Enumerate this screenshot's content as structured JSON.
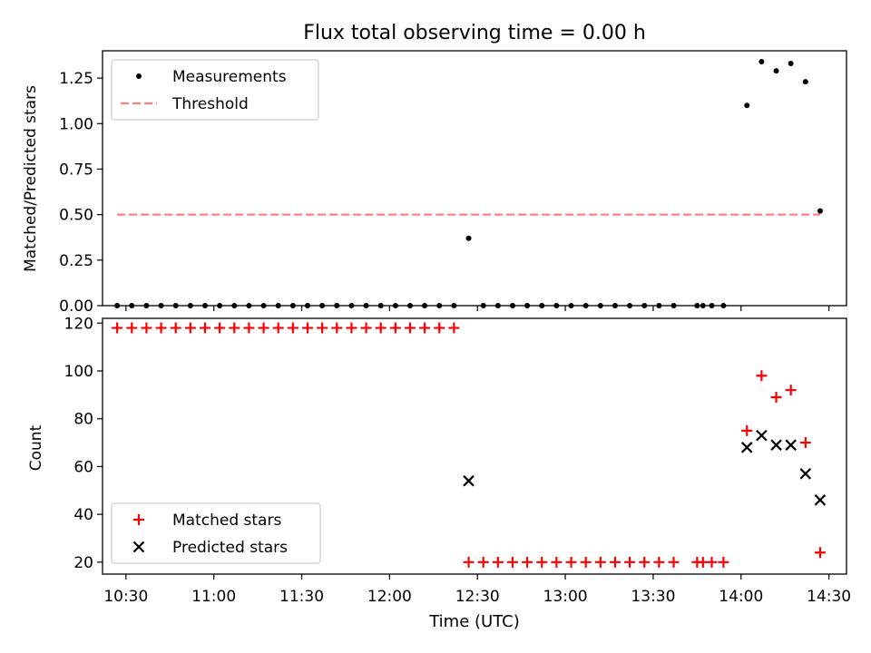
{
  "chart_data": {
    "type": "scatter",
    "title": "Flux total observing time = 0.00 h",
    "xlabel": "Time (UTC)",
    "xticks": [
      "10:30",
      "11:00",
      "11:30",
      "12:00",
      "12:30",
      "13:00",
      "13:30",
      "14:00",
      "14:30"
    ],
    "xlim": [
      "10:22",
      "14:36"
    ],
    "panels": [
      {
        "id": "top",
        "ylabel": "Matched/Predicted stars",
        "ylim": [
          0,
          1.4
        ],
        "yticks": [
          "0.00",
          "0.25",
          "0.50",
          "0.75",
          "1.00",
          "1.25"
        ],
        "legend_position": "upper-left",
        "series": [
          {
            "name": "Measurements",
            "marker": "dot",
            "color": "#000000",
            "points": [
              [
                "10:27",
                0
              ],
              [
                "10:32",
                0
              ],
              [
                "10:37",
                0
              ],
              [
                "10:42",
                0
              ],
              [
                "10:47",
                0
              ],
              [
                "10:52",
                0
              ],
              [
                "10:57",
                0
              ],
              [
                "11:02",
                0
              ],
              [
                "11:07",
                0
              ],
              [
                "11:12",
                0
              ],
              [
                "11:17",
                0
              ],
              [
                "11:22",
                0
              ],
              [
                "11:27",
                0
              ],
              [
                "11:32",
                0
              ],
              [
                "11:37",
                0
              ],
              [
                "11:42",
                0
              ],
              [
                "11:47",
                0
              ],
              [
                "11:52",
                0
              ],
              [
                "11:57",
                0
              ],
              [
                "12:02",
                0
              ],
              [
                "12:07",
                0
              ],
              [
                "12:12",
                0
              ],
              [
                "12:17",
                0
              ],
              [
                "12:22",
                0
              ],
              [
                "12:27",
                0.37
              ],
              [
                "12:32",
                0
              ],
              [
                "12:37",
                0
              ],
              [
                "12:42",
                0
              ],
              [
                "12:47",
                0
              ],
              [
                "12:52",
                0
              ],
              [
                "12:57",
                0
              ],
              [
                "13:02",
                0
              ],
              [
                "13:07",
                0
              ],
              [
                "13:12",
                0
              ],
              [
                "13:17",
                0
              ],
              [
                "13:22",
                0
              ],
              [
                "13:27",
                0
              ],
              [
                "13:32",
                0
              ],
              [
                "13:37",
                0
              ],
              [
                "13:45",
                0
              ],
              [
                "13:47",
                0
              ],
              [
                "13:50",
                0
              ],
              [
                "13:54",
                0
              ],
              [
                "14:02",
                1.1
              ],
              [
                "14:07",
                1.34
              ],
              [
                "14:12",
                1.29
              ],
              [
                "14:17",
                1.33
              ],
              [
                "14:22",
                1.23
              ],
              [
                "14:27",
                0.52
              ]
            ]
          },
          {
            "name": "Threshold",
            "marker": "dashed-line",
            "color": "#ff7f7f",
            "points": [
              [
                "10:27",
                0.5
              ],
              [
                "14:27",
                0.5
              ]
            ]
          }
        ]
      },
      {
        "id": "bottom",
        "ylabel": "Count",
        "ylim": [
          15,
          122
        ],
        "yticks": [
          "20",
          "40",
          "60",
          "80",
          "100",
          "120"
        ],
        "legend_position": "lower-left",
        "series": [
          {
            "name": "Matched stars",
            "marker": "plus",
            "color": "#ff0000",
            "points": [
              [
                "10:27",
                118
              ],
              [
                "10:32",
                118
              ],
              [
                "10:37",
                118
              ],
              [
                "10:42",
                118
              ],
              [
                "10:47",
                118
              ],
              [
                "10:52",
                118
              ],
              [
                "10:57",
                118
              ],
              [
                "11:02",
                118
              ],
              [
                "11:07",
                118
              ],
              [
                "11:12",
                118
              ],
              [
                "11:17",
                118
              ],
              [
                "11:22",
                118
              ],
              [
                "11:27",
                118
              ],
              [
                "11:32",
                118
              ],
              [
                "11:37",
                118
              ],
              [
                "11:42",
                118
              ],
              [
                "11:47",
                118
              ],
              [
                "11:52",
                118
              ],
              [
                "11:57",
                118
              ],
              [
                "12:02",
                118
              ],
              [
                "12:07",
                118
              ],
              [
                "12:12",
                118
              ],
              [
                "12:17",
                118
              ],
              [
                "12:22",
                118
              ],
              [
                "12:27",
                20
              ],
              [
                "12:32",
                20
              ],
              [
                "12:37",
                20
              ],
              [
                "12:42",
                20
              ],
              [
                "12:47",
                20
              ],
              [
                "12:52",
                20
              ],
              [
                "12:57",
                20
              ],
              [
                "13:02",
                20
              ],
              [
                "13:07",
                20
              ],
              [
                "13:12",
                20
              ],
              [
                "13:17",
                20
              ],
              [
                "13:22",
                20
              ],
              [
                "13:27",
                20
              ],
              [
                "13:32",
                20
              ],
              [
                "13:37",
                20
              ],
              [
                "13:45",
                20
              ],
              [
                "13:47",
                20
              ],
              [
                "13:50",
                20
              ],
              [
                "13:54",
                20
              ],
              [
                "14:02",
                75
              ],
              [
                "14:07",
                98
              ],
              [
                "14:12",
                89
              ],
              [
                "14:17",
                92
              ],
              [
                "14:22",
                70
              ],
              [
                "14:27",
                24
              ]
            ]
          },
          {
            "name": "Predicted stars",
            "marker": "x",
            "color": "#000000",
            "points": [
              [
                "12:27",
                54
              ],
              [
                "14:02",
                68
              ],
              [
                "14:07",
                73
              ],
              [
                "14:12",
                69
              ],
              [
                "14:17",
                69
              ],
              [
                "14:22",
                57
              ],
              [
                "14:27",
                46
              ]
            ]
          }
        ]
      }
    ]
  }
}
